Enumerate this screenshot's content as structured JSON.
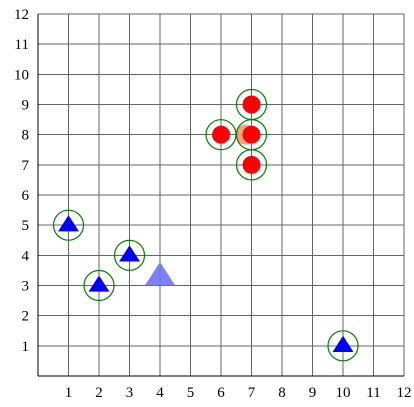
{
  "chart_data": {
    "type": "scatter",
    "title": "",
    "xlabel": "",
    "ylabel": "",
    "xlim": [
      0,
      12
    ],
    "ylim": [
      0,
      12
    ],
    "x_ticks": [
      "1",
      "2",
      "3",
      "4",
      "5",
      "6",
      "7",
      "8",
      "9",
      "10",
      "11",
      "12"
    ],
    "y_ticks": [
      "1",
      "2",
      "3",
      "4",
      "5",
      "6",
      "7",
      "8",
      "9",
      "10",
      "11",
      "12"
    ],
    "grid": true,
    "legend": "none",
    "series": [
      {
        "marker": "circle",
        "color": "#ff0000",
        "points": [
          {
            "x": 6,
            "y": 8,
            "ringed": true
          },
          {
            "x": 7,
            "y": 9,
            "ringed": true
          },
          {
            "x": 7,
            "y": 8,
            "ringed": true
          },
          {
            "x": 7,
            "y": 7,
            "ringed": true
          }
        ]
      },
      {
        "marker": "triangle",
        "color": "#0000ff",
        "points": [
          {
            "x": 1,
            "y": 5,
            "ringed": true
          },
          {
            "x": 2,
            "y": 3,
            "ringed": true
          },
          {
            "x": 3,
            "y": 4,
            "ringed": true
          },
          {
            "x": 10,
            "y": 1,
            "ringed": true
          }
        ]
      }
    ],
    "highlight_points": [
      {
        "marker": "circle",
        "color": "#ff8c69",
        "x": 6.8,
        "y": 8
      },
      {
        "marker": "triangle",
        "color": "#6f73ff",
        "x": 4,
        "y": 3.3
      }
    ],
    "ring_color": "#008000"
  }
}
